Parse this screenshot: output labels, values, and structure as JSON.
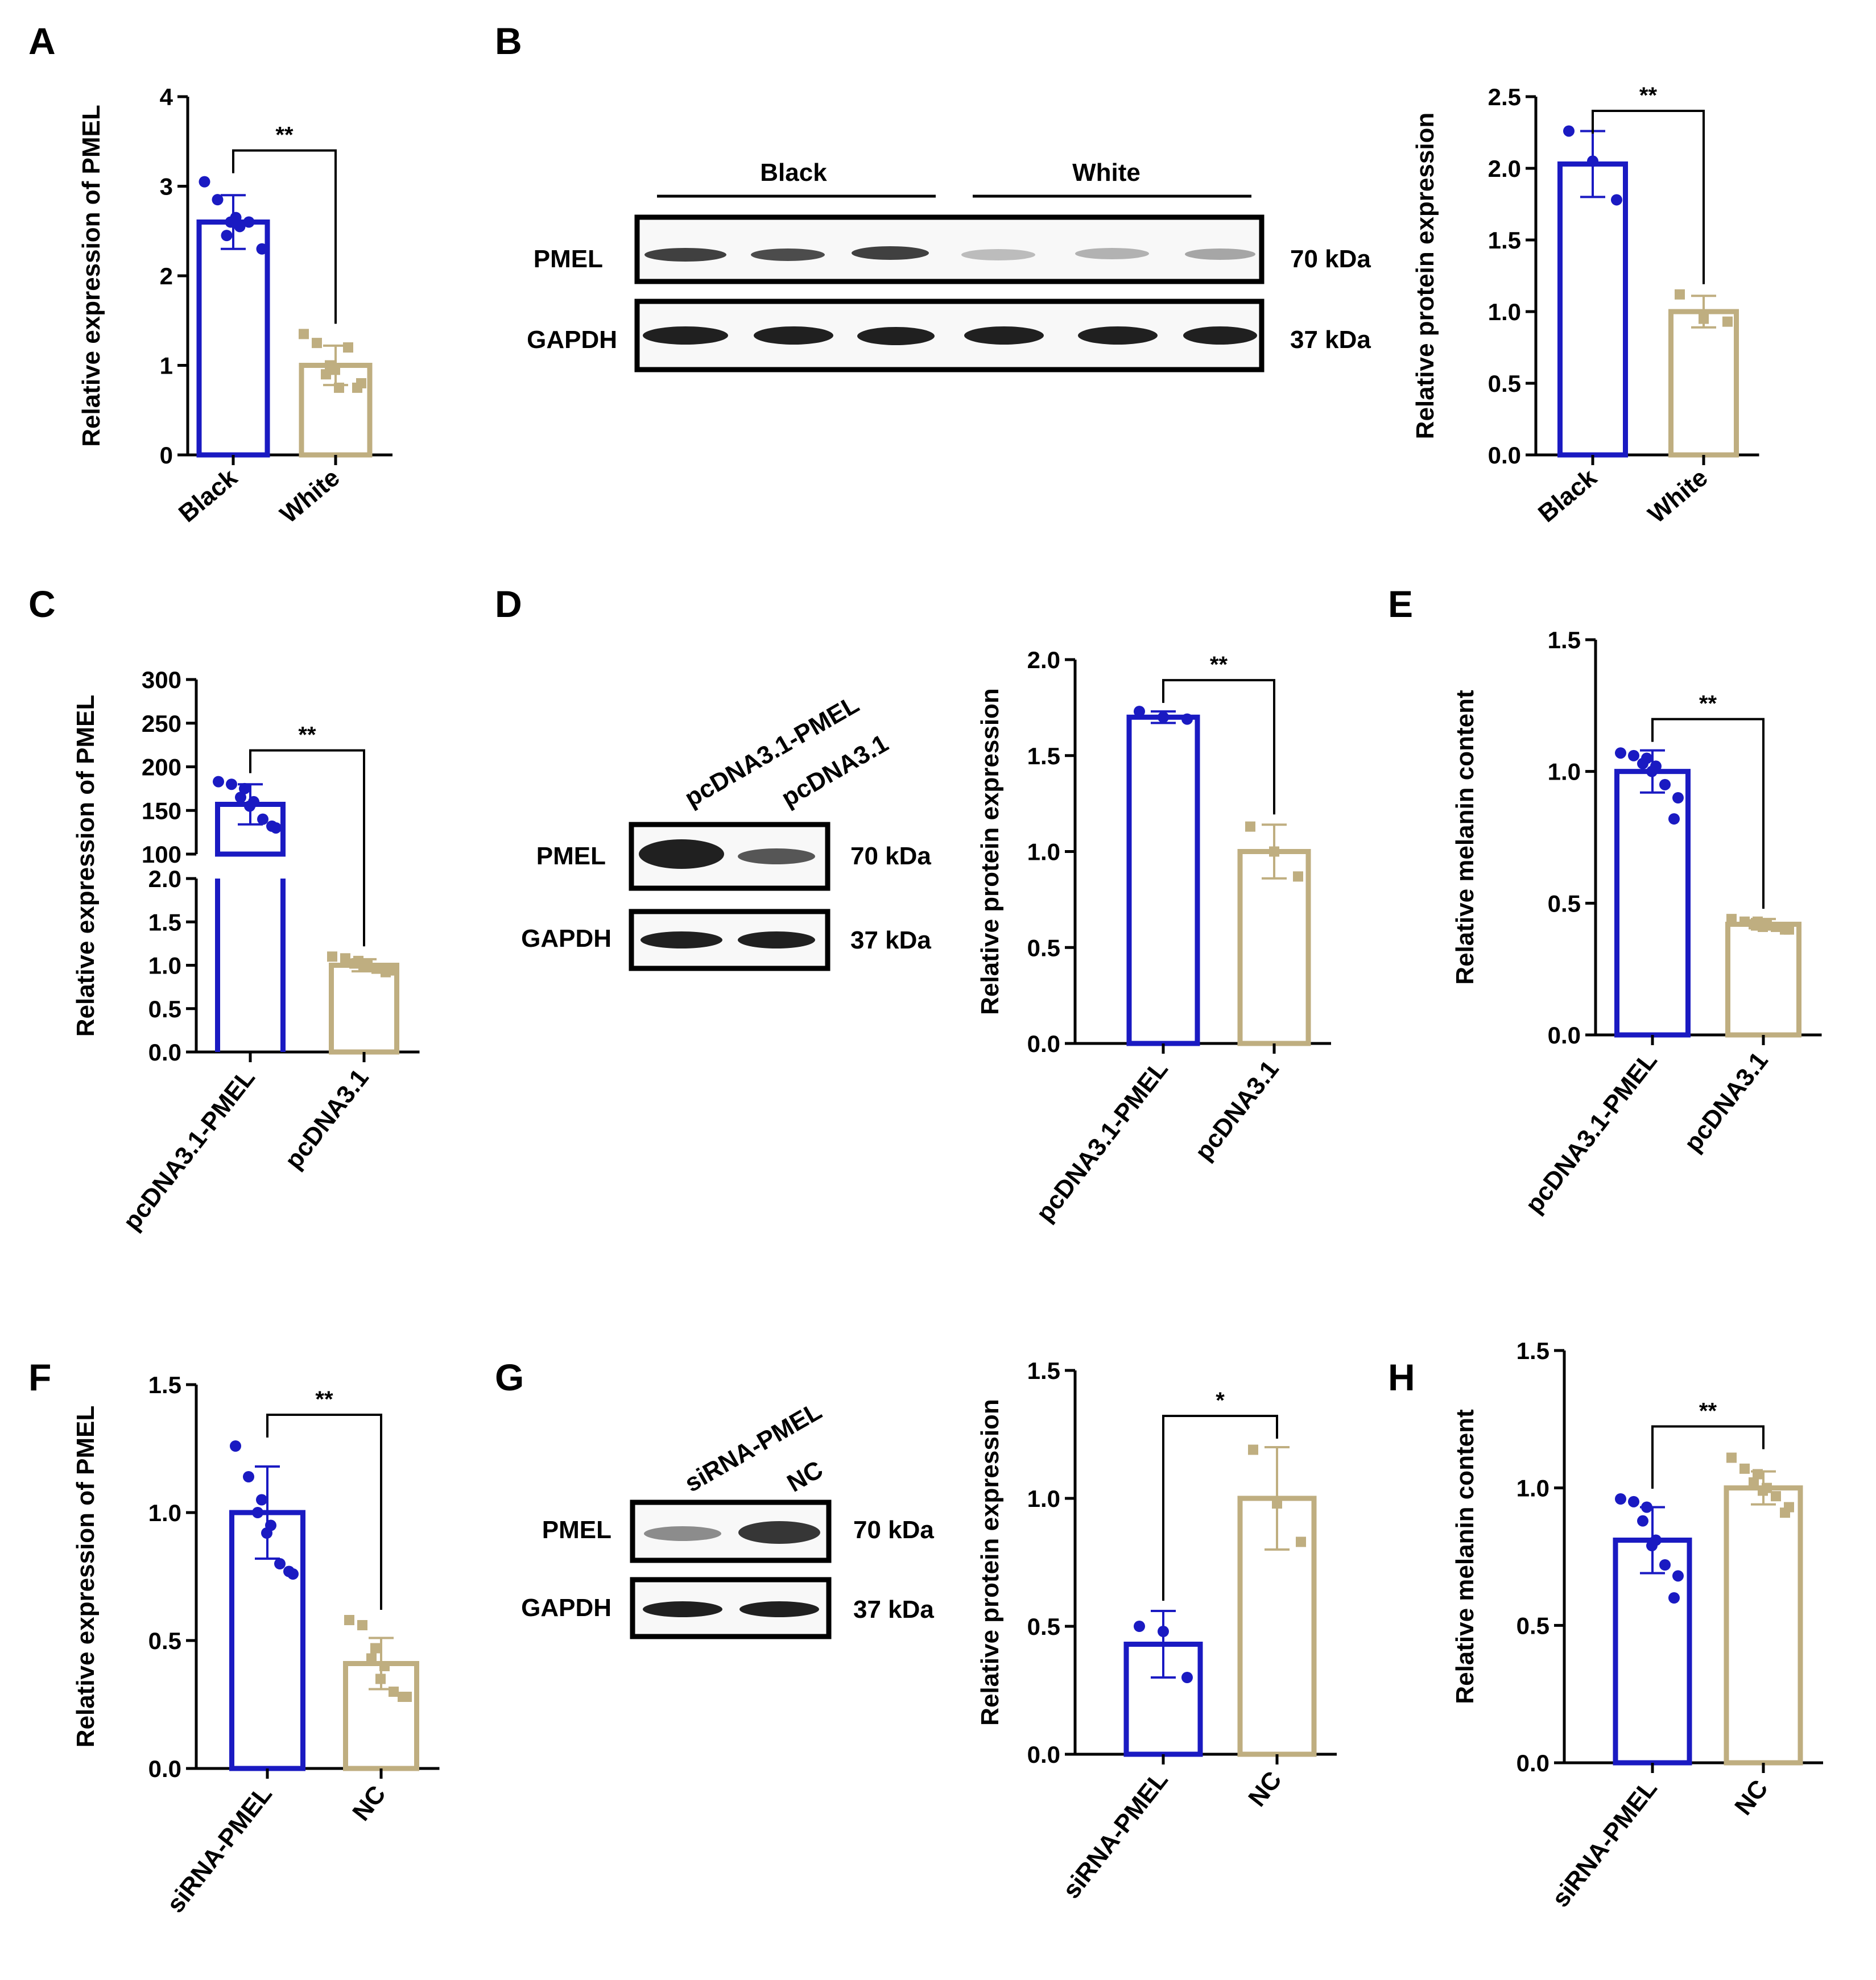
{
  "colors": {
    "blue": "#1a1ac2",
    "tan": "#bfae80",
    "axis": "#000000",
    "band": "#202020"
  },
  "panel_labels": {
    "A": "A",
    "B": "B",
    "C": "C",
    "D": "D",
    "E": "E",
    "F": "F",
    "G": "G",
    "H": "H"
  },
  "blots": {
    "B": {
      "groups": [
        "Black",
        "White"
      ],
      "rows": [
        "PMEL",
        "GAPDH"
      ],
      "sizes": [
        "70 kDa",
        "37 kDa"
      ]
    },
    "D": {
      "lanes": [
        "pcDNA3.1-PMEL",
        "pcDNA3.1"
      ],
      "rows": [
        "PMEL",
        "GAPDH"
      ],
      "sizes": [
        "70 kDa",
        "37 kDa"
      ]
    },
    "G": {
      "lanes": [
        "siRNA-PMEL",
        "NC"
      ],
      "rows": [
        "PMEL",
        "GAPDH"
      ],
      "sizes": [
        "70 kDa",
        "37 kDa"
      ]
    }
  },
  "chart_data": [
    {
      "id": "A",
      "type": "bar",
      "ylabel": "Relative expression of PMEL",
      "categories": [
        "Black",
        "White"
      ],
      "values": [
        2.6,
        1.0
      ],
      "errors": [
        0.3,
        0.22
      ],
      "ylim": [
        0,
        4
      ],
      "yticks": [
        0,
        1,
        2,
        3,
        4
      ],
      "tick_labels": [
        "0",
        "1",
        "2",
        "3",
        "4"
      ],
      "points": [
        [
          3.05,
          2.85,
          2.6,
          2.45,
          2.55,
          2.65,
          2.6,
          2.3
        ],
        [
          1.35,
          1.25,
          1.0,
          0.9,
          0.75,
          0.95,
          1.2,
          0.8,
          0.75
        ]
      ],
      "significance": "**"
    },
    {
      "id": "B",
      "type": "bar",
      "ylabel": "Relative protein expression",
      "categories": [
        "Black",
        "White"
      ],
      "values": [
        2.03,
        1.0
      ],
      "errors": [
        0.23,
        0.11
      ],
      "ylim": [
        0,
        2.5
      ],
      "yticks": [
        0,
        0.5,
        1,
        1.5,
        2,
        2.5
      ],
      "tick_labels": [
        "0.0",
        "0.5",
        "1.0",
        "1.5",
        "2.0",
        "2.5"
      ],
      "points": [
        [
          2.26,
          2.05,
          1.78
        ],
        [
          1.12,
          0.95,
          0.93
        ]
      ],
      "significance": "**"
    },
    {
      "id": "C",
      "type": "bar",
      "ylabel": "Relative expression of PMEL",
      "categories": [
        "pcDNA3.1-PMEL",
        "pcDNA3.1"
      ],
      "values": [
        157,
        1.0
      ],
      "errors": [
        23,
        0.07
      ],
      "axis_break": true,
      "upper_ylim": [
        100,
        300
      ],
      "upper_ticks": [
        100,
        150,
        200,
        250,
        300
      ],
      "upper_tick_labels": [
        "100",
        "150",
        "200",
        "250",
        "300"
      ],
      "lower_ylim": [
        0,
        2
      ],
      "lower_ticks": [
        0,
        0.5,
        1,
        1.5,
        2
      ],
      "lower_tick_labels": [
        "0.0",
        "0.5",
        "1.0",
        "1.5",
        "2.0"
      ],
      "points": [
        [
          183,
          180,
          175,
          165,
          160,
          155,
          140,
          130,
          132
        ],
        [
          1.1,
          1.08,
          1.05,
          1.02,
          1.0,
          0.98,
          0.96,
          0.94,
          0.92
        ]
      ],
      "significance": "**"
    },
    {
      "id": "D",
      "type": "bar",
      "ylabel": "Relative protein expression",
      "categories": [
        "pcDNA3.1-PMEL",
        "pcDNA3.1"
      ],
      "values": [
        1.7,
        1.0
      ],
      "errors": [
        0.03,
        0.14
      ],
      "ylim": [
        0,
        2
      ],
      "yticks": [
        0,
        0.5,
        1,
        1.5,
        2
      ],
      "tick_labels": [
        "0.0",
        "0.5",
        "1.0",
        "1.5",
        "2.0"
      ],
      "points": [
        [
          1.73,
          1.7,
          1.69
        ],
        [
          1.13,
          1.0,
          0.87
        ]
      ],
      "significance": "**"
    },
    {
      "id": "E",
      "type": "bar",
      "ylabel": "Relative melanin content",
      "categories": [
        "pcDNA3.1-PMEL",
        "pcDNA3.1"
      ],
      "values": [
        1.0,
        0.42
      ],
      "errors": [
        0.08,
        0.02
      ],
      "ylim": [
        0,
        1.5
      ],
      "yticks": [
        0,
        0.5,
        1,
        1.5
      ],
      "tick_labels": [
        "0.0",
        "0.5",
        "1.0",
        "1.5"
      ],
      "points": [
        [
          1.07,
          1.06,
          1.05,
          1.03,
          1.02,
          1.0,
          0.95,
          0.9,
          0.82
        ],
        [
          0.44,
          0.43,
          0.43,
          0.42,
          0.42,
          0.41,
          0.41,
          0.4,
          0.4
        ]
      ],
      "significance": "**"
    },
    {
      "id": "F",
      "type": "bar",
      "ylabel": "Relative expression of PMEL",
      "categories": [
        "siRNA-PMEL",
        "NC"
      ],
      "values": [
        1.0,
        0.41
      ],
      "errors": [
        0.18,
        0.1
      ],
      "ylim": [
        0,
        1.5
      ],
      "yticks": [
        0,
        0.5,
        1,
        1.5
      ],
      "tick_labels": [
        "0.0",
        "0.5",
        "1.0",
        "1.5"
      ],
      "points": [
        [
          1.26,
          1.14,
          1.05,
          1.0,
          0.95,
          0.92,
          0.8,
          0.76,
          0.77
        ],
        [
          0.58,
          0.56,
          0.47,
          0.43,
          0.4,
          0.35,
          0.3,
          0.28,
          0.28
        ]
      ],
      "significance": "**"
    },
    {
      "id": "G",
      "type": "bar",
      "ylabel": "Relative protein expression",
      "categories": [
        "siRNA-PMEL",
        "NC"
      ],
      "values": [
        0.43,
        1.0
      ],
      "errors": [
        0.13,
        0.2
      ],
      "ylim": [
        0,
        1.5
      ],
      "yticks": [
        0,
        0.5,
        1,
        1.5
      ],
      "tick_labels": [
        "0.0",
        "0.5",
        "1.0",
        "1.5"
      ],
      "points": [
        [
          0.5,
          0.48,
          0.3
        ],
        [
          1.19,
          0.98,
          0.83
        ]
      ],
      "significance": "*"
    },
    {
      "id": "H",
      "type": "bar",
      "ylabel": "Relative melanin content",
      "categories": [
        "siRNA-PMEL",
        "NC"
      ],
      "values": [
        0.81,
        1.0
      ],
      "errors": [
        0.12,
        0.06
      ],
      "ylim": [
        0,
        1.5
      ],
      "yticks": [
        0,
        0.5,
        1,
        1.5
      ],
      "tick_labels": [
        "0.0",
        "0.5",
        "1.0",
        "1.5"
      ],
      "points": [
        [
          0.96,
          0.95,
          0.93,
          0.88,
          0.81,
          0.79,
          0.72,
          0.68,
          0.6
        ],
        [
          1.11,
          1.07,
          1.05,
          1.02,
          1.0,
          0.99,
          0.97,
          0.93,
          0.91
        ]
      ],
      "significance": "**"
    }
  ]
}
